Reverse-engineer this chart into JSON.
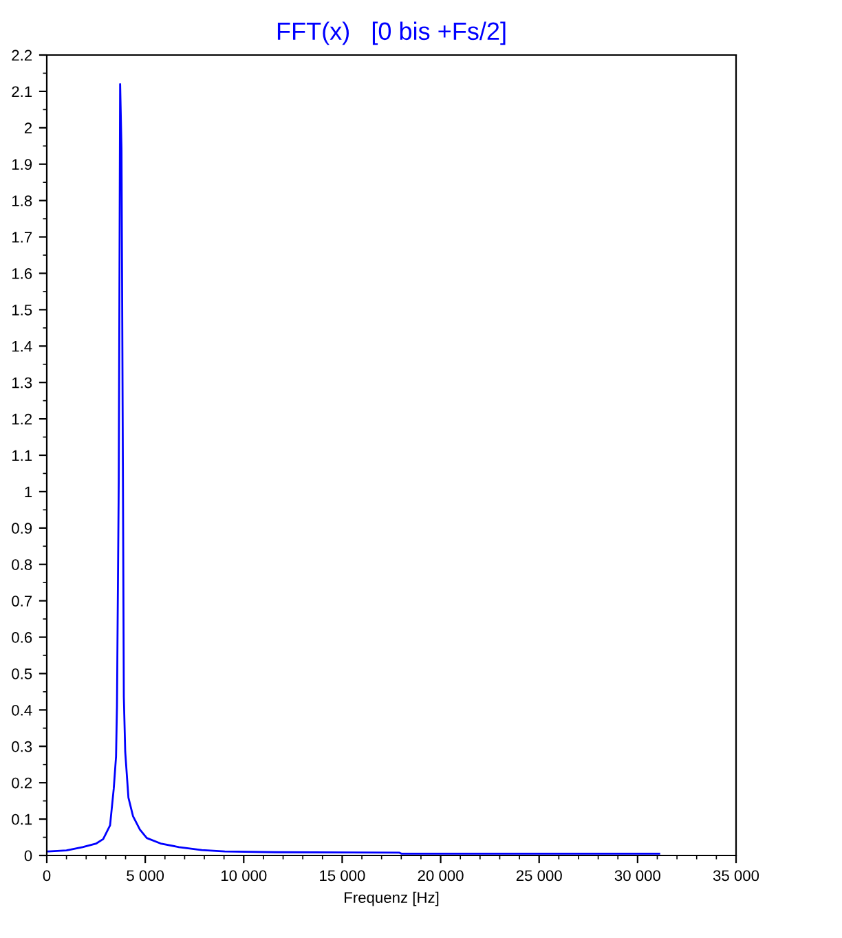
{
  "chart_data": {
    "type": "line",
    "title": "FFT(x)   [0 bis +Fs/2]",
    "xlabel": "Frequenz [Hz]",
    "x": [
      0,
      70,
      1000,
      1817,
      2516,
      2865,
      3214,
      3401,
      3517,
      3564,
      3655,
      3725,
      3795,
      3864,
      3913,
      3983,
      4146,
      4379,
      4729,
      5078,
      5777,
      6709,
      7873,
      9038,
      11600,
      17890,
      18000,
      31100
    ],
    "series": [
      {
        "color": "#0000ff",
        "values": [
          0.011,
          0.011,
          0.014,
          0.023,
          0.033,
          0.045,
          0.083,
          0.184,
          0.272,
          0.41,
          1.03,
          2.12,
          1.94,
          1.08,
          0.436,
          0.285,
          0.159,
          0.108,
          0.071,
          0.048,
          0.033,
          0.023,
          0.015,
          0.011,
          0.009,
          0.008,
          0.005,
          0.005
        ]
      }
    ],
    "xlim": [
      0,
      35000
    ],
    "ylim": [
      0,
      2.2
    ],
    "xticks": [
      0,
      {
        "value": 5000,
        "label": "5 000"
      },
      {
        "value": 10000,
        "label": "10 000"
      },
      {
        "value": 15000,
        "label": "15 000"
      },
      {
        "value": 20000,
        "label": "20 000"
      },
      {
        "value": 25000,
        "label": "25 000"
      },
      {
        "value": 30000,
        "label": "30 000"
      },
      {
        "value": 35000,
        "label": "35 000"
      }
    ],
    "yticks": [
      0,
      0.1,
      0.2,
      0.3,
      0.4,
      0.5,
      0.6,
      0.7,
      0.8,
      0.9,
      1,
      1.1,
      1.2,
      1.3,
      1.4,
      1.5,
      1.6,
      1.7,
      1.8,
      1.9,
      2,
      2.1,
      2.2
    ],
    "grid": false,
    "legend": false,
    "marker": "none",
    "line_style": "solid"
  }
}
